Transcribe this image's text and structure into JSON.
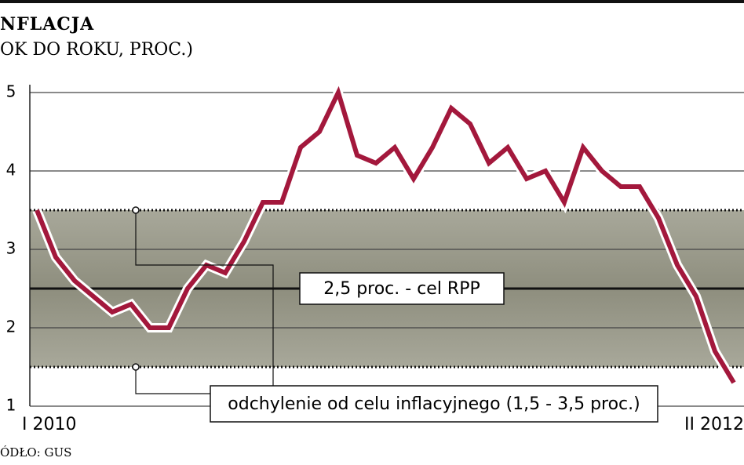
{
  "chart_data": {
    "type": "line",
    "title": "NFLACJA",
    "subtitle": "OK DO ROKU, PROC.)",
    "source": "ÓDŁO: GUS",
    "categories": [
      "I 2010",
      null,
      null,
      null,
      null,
      null,
      null,
      null,
      null,
      null,
      null,
      null,
      null,
      null,
      null,
      null,
      null,
      null,
      null,
      null,
      null,
      null,
      null,
      null,
      null,
      null,
      null,
      null,
      null,
      null,
      null,
      null,
      null,
      null,
      null,
      null,
      null,
      "II 2012"
    ],
    "series": [
      {
        "color": "#a3183c",
        "values": [
          3.5,
          2.9,
          2.6,
          2.4,
          2.2,
          2.3,
          2.0,
          2.0,
          2.5,
          2.8,
          2.7,
          3.1,
          3.6,
          3.6,
          4.3,
          4.5,
          5.0,
          4.2,
          4.1,
          4.3,
          3.9,
          4.3,
          4.8,
          4.6,
          4.1,
          4.3,
          3.9,
          4.0,
          3.6,
          4.3,
          4.0,
          3.8,
          3.8,
          3.4,
          2.8,
          2.4,
          1.7,
          1.3
        ]
      }
    ],
    "ylim": [
      1,
      5
    ],
    "yticks": [
      1,
      2,
      3,
      4,
      5
    ],
    "grid": true,
    "band": {
      "range": [
        1.5,
        3.5
      ],
      "label": "odchylenie od celu inflacyjnego (1,5 - 3,5 proc.)"
    },
    "target": {
      "value": 2.5,
      "label": "2,5 proc. - cel RPP"
    }
  }
}
